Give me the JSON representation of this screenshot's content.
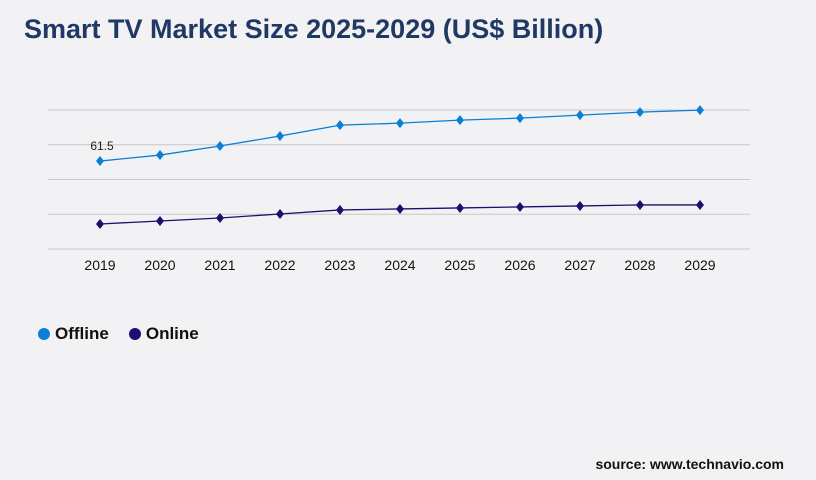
{
  "title": "Smart TV Market Size 2025-2029 (US$ Billion)",
  "source": "source: www.technavio.com",
  "chart_data": {
    "type": "line",
    "title": "Smart TV Market Size 2025-2029 (US$ Billion)",
    "categories": [
      "2019",
      "2020",
      "2021",
      "2022",
      "2023",
      "2024",
      "2025",
      "2026",
      "2027",
      "2028",
      "2029"
    ],
    "series": [
      {
        "name": "Offline",
        "color": "#0a7fd6",
        "values": [
          61.5,
          65.7,
          72.0,
          79.0,
          86.6,
          88.0,
          90.1,
          91.5,
          93.6,
          95.7,
          97.1
        ],
        "data_labels": {
          "0": "61.5"
        }
      },
      {
        "name": "Online",
        "color": "#1a1070",
        "values": [
          17.5,
          19.6,
          21.7,
          24.5,
          27.3,
          28.0,
          28.7,
          29.4,
          30.1,
          30.8,
          30.8
        ]
      }
    ],
    "ylim": [
      0,
      97.2
    ],
    "grid": true,
    "y_tick_labels_shown": false,
    "legend": "bottom-left"
  }
}
